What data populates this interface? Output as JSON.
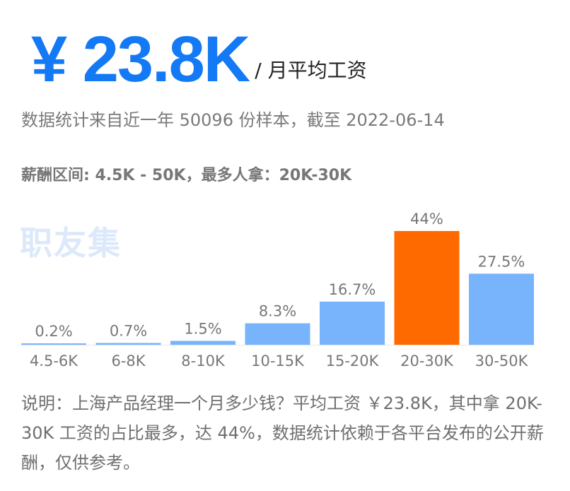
{
  "header": {
    "amount": "¥ 23.8K",
    "unit": "/ 月平均工资"
  },
  "stats_line": "数据统计来自近一年 50096 份样本，截至 2022-06-14",
  "range_line": "薪酬区间: 4.5K - 50K，最多人拿：20K-30K",
  "watermark": "职友集",
  "note": "说明：上海产品经理一个月多少钱？平均工资 ￥23.8K，其中拿 20K-30K 工资的占比最多，达 44%，数据统计依赖于各平台发布的公开薪酬，仅供参考。",
  "colors": {
    "bar": "#78b4fb",
    "highlight": "#ff6a00",
    "accent": "#1479f5"
  },
  "chart_data": {
    "type": "bar",
    "categories": [
      "4.5-6K",
      "6-8K",
      "8-10K",
      "10-15K",
      "15-20K",
      "20-30K",
      "30-50K"
    ],
    "values": [
      0.2,
      0.7,
      1.5,
      8.3,
      16.7,
      44,
      27.5
    ],
    "labels": [
      "0.2%",
      "0.7%",
      "1.5%",
      "8.3%",
      "16.7%",
      "44%",
      "27.5%"
    ],
    "highlight_index": 5,
    "ylim": [
      0,
      44
    ],
    "grid": false,
    "title": "",
    "xlabel": "",
    "ylabel": ""
  }
}
